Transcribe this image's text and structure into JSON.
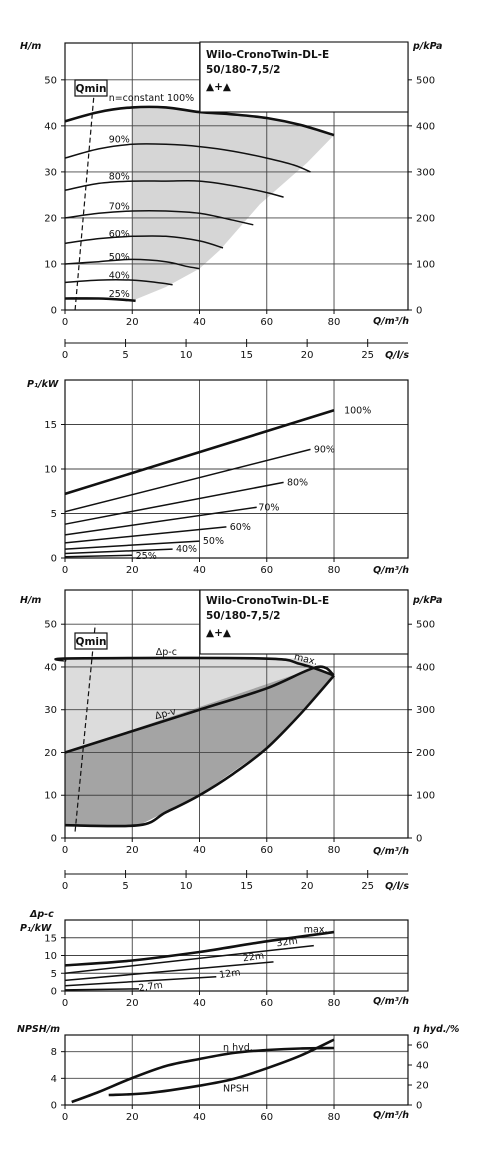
{
  "title": {
    "line1": "Wilo-CronoTwin-DL-E",
    "line2": "50/180-7,5/2",
    "line3": "▲+▲"
  },
  "chart_data": [
    {
      "id": "hq_speed",
      "type": "line",
      "xlabel": "Q/m³/h",
      "ylabel": "H/m",
      "y2label": "p/kPa",
      "xlim": [
        0,
        102
      ],
      "ylim": [
        0,
        58
      ],
      "xticks": [
        0,
        20,
        40,
        60,
        80
      ],
      "yticks": [
        0,
        10,
        20,
        30,
        40,
        50
      ],
      "y2ticks": [
        0,
        100,
        200,
        300,
        400,
        500
      ],
      "qmin_label": "Qmin",
      "qmin_line": [
        [
          3,
          0
        ],
        [
          9,
          50
        ]
      ],
      "shaded_region": [
        [
          20,
          2
        ],
        [
          30,
          5
        ],
        [
          40,
          9
        ],
        [
          46,
          13
        ],
        [
          58,
          23
        ],
        [
          72,
          32
        ],
        [
          80,
          38
        ],
        [
          76,
          40
        ],
        [
          60,
          42
        ],
        [
          40,
          42
        ],
        [
          20,
          44
        ],
        [
          12,
          44
        ],
        [
          20,
          43
        ],
        [
          40,
          42
        ],
        [
          60,
          41
        ],
        [
          70,
          40
        ],
        [
          80,
          38
        ]
      ],
      "series": [
        {
          "label": "n=constant 100%",
          "bold": true,
          "points": [
            [
              0,
              41
            ],
            [
              10,
              43
            ],
            [
              20,
              44
            ],
            [
              30,
              44
            ],
            [
              40,
              43
            ],
            [
              50,
              42.5
            ],
            [
              60,
              41.7
            ],
            [
              70,
              40.2
            ],
            [
              80,
              38
            ]
          ]
        },
        {
          "label": "90%",
          "points": [
            [
              0,
              33
            ],
            [
              10,
              35
            ],
            [
              20,
              36
            ],
            [
              30,
              36
            ],
            [
              40,
              35.5
            ],
            [
              50,
              34.5
            ],
            [
              60,
              33
            ],
            [
              68,
              31.5
            ],
            [
              73,
              30
            ]
          ]
        },
        {
          "label": "80%",
          "points": [
            [
              0,
              26
            ],
            [
              10,
              27.5
            ],
            [
              20,
              28
            ],
            [
              30,
              28
            ],
            [
              40,
              28
            ],
            [
              50,
              27
            ],
            [
              60,
              25.5
            ],
            [
              65,
              24.5
            ]
          ]
        },
        {
          "label": "70%",
          "points": [
            [
              0,
              20
            ],
            [
              10,
              21
            ],
            [
              20,
              21.5
            ],
            [
              30,
              21.5
            ],
            [
              40,
              21
            ],
            [
              50,
              19.5
            ],
            [
              56,
              18.5
            ]
          ]
        },
        {
          "label": "60%",
          "points": [
            [
              0,
              14.5
            ],
            [
              10,
              15.5
            ],
            [
              20,
              16
            ],
            [
              30,
              16
            ],
            [
              40,
              15
            ],
            [
              47,
              13.5
            ]
          ]
        },
        {
          "label": "50%",
          "points": [
            [
              0,
              10
            ],
            [
              10,
              10.5
            ],
            [
              20,
              11
            ],
            [
              30,
              10.5
            ],
            [
              36,
              9.5
            ],
            [
              40,
              9
            ]
          ]
        },
        {
          "label": "40%",
          "points": [
            [
              0,
              6
            ],
            [
              10,
              6.5
            ],
            [
              20,
              6.5
            ],
            [
              27,
              6
            ],
            [
              32,
              5.5
            ]
          ]
        },
        {
          "label": "25%",
          "bold": true,
          "points": [
            [
              0,
              2.5
            ],
            [
              10,
              2.5
            ],
            [
              18,
              2.2
            ],
            [
              21,
              2
            ]
          ]
        }
      ],
      "labels": [
        {
          "text": "n=constant 100%",
          "x": 13,
          "y": 46
        },
        {
          "text": "90%",
          "x": 13,
          "y": 37
        },
        {
          "text": "80%",
          "x": 13,
          "y": 29
        },
        {
          "text": "70%",
          "x": 13,
          "y": 22.5
        },
        {
          "text": "60%",
          "x": 13,
          "y": 16.5
        },
        {
          "text": "50%",
          "x": 13,
          "y": 11.5
        },
        {
          "text": "40%",
          "x": 13,
          "y": 7.5
        },
        {
          "text": "25%",
          "x": 13,
          "y": 3.5
        }
      ]
    },
    {
      "id": "q_ls_axis",
      "type": "axis",
      "xlabel": "Q/l/s",
      "xlim": [
        0,
        28.33
      ],
      "xticks": [
        0,
        5,
        10,
        15,
        20,
        25
      ]
    },
    {
      "id": "p1_speed",
      "type": "line",
      "xlabel": "Q/m³/h",
      "ylabel": "P₁/kW",
      "xlim": [
        0,
        102
      ],
      "ylim": [
        0,
        20
      ],
      "xticks": [
        0,
        20,
        40,
        60,
        80
      ],
      "yticks": [
        0,
        5,
        10,
        15
      ],
      "series": [
        {
          "label": "100%",
          "bold": true,
          "points": [
            [
              0,
              7.2
            ],
            [
              80,
              16.6
            ]
          ]
        },
        {
          "label": "90%",
          "points": [
            [
              0,
              5.2
            ],
            [
              73,
              12.2
            ]
          ]
        },
        {
          "label": "80%",
          "points": [
            [
              0,
              3.8
            ],
            [
              65,
              8.5
            ]
          ]
        },
        {
          "label": "70%",
          "points": [
            [
              0,
              2.6
            ],
            [
              57,
              5.7
            ]
          ]
        },
        {
          "label": "60%",
          "points": [
            [
              0,
              1.7
            ],
            [
              48,
              3.5
            ]
          ]
        },
        {
          "label": "50%",
          "points": [
            [
              0,
              1.0
            ],
            [
              40,
              1.9
            ]
          ]
        },
        {
          "label": "40%",
          "points": [
            [
              0,
              0.5
            ],
            [
              32,
              1.0
            ]
          ]
        },
        {
          "label": "25%",
          "points": [
            [
              0,
              0.15
            ],
            [
              20,
              0.3
            ]
          ]
        }
      ],
      "labels": [
        {
          "text": "100%",
          "x": 83,
          "y": 16.6
        },
        {
          "text": "90%",
          "x": 74,
          "y": 12.2
        },
        {
          "text": "80%",
          "x": 66,
          "y": 8.5
        },
        {
          "text": "70%",
          "x": 57.5,
          "y": 5.7
        },
        {
          "text": "60%",
          "x": 49,
          "y": 3.5
        },
        {
          "text": "50%",
          "x": 41,
          "y": 1.9
        },
        {
          "text": "40%",
          "x": 33,
          "y": 1.0
        },
        {
          "text": "25%",
          "x": 21,
          "y": 0.2
        }
      ]
    },
    {
      "id": "hq_control",
      "type": "area",
      "xlabel": "Q/m³/h",
      "ylabel": "H/m",
      "y2label": "p/kPa",
      "xlim": [
        0,
        102
      ],
      "ylim": [
        0,
        58
      ],
      "xticks": [
        0,
        20,
        40,
        60,
        80
      ],
      "yticks": [
        0,
        10,
        20,
        30,
        40,
        50
      ],
      "y2ticks": [
        0,
        100,
        200,
        300,
        400,
        500
      ],
      "qmin_label": "Qmin",
      "qmin_line": [
        [
          3,
          1.5
        ],
        [
          9,
          50
        ]
      ],
      "light_region": [
        [
          0,
          20
        ],
        [
          75,
          40
        ],
        [
          70,
          42
        ],
        [
          58,
          42
        ],
        [
          0,
          42
        ]
      ],
      "dark_region": [
        [
          0,
          3
        ],
        [
          22,
          3
        ],
        [
          40,
          10
        ],
        [
          60,
          21
        ],
        [
          80,
          38
        ],
        [
          75,
          40
        ],
        [
          0,
          20
        ]
      ],
      "series": [
        {
          "label": "Δp-c",
          "bold": true,
          "points": [
            [
              0,
              41.5
            ],
            [
              2,
              42
            ],
            [
              58,
              42
            ],
            [
              70,
              40.7
            ],
            [
              80,
              38
            ]
          ]
        },
        {
          "label": "Δp-v",
          "bold": true,
          "points": [
            [
              0,
              20
            ],
            [
              20,
              25
            ],
            [
              40,
              30
            ],
            [
              60,
              35
            ],
            [
              75,
              40
            ],
            [
              80,
              38
            ]
          ]
        },
        {
          "label": "max.",
          "bold": true,
          "points": [
            [
              0,
              3
            ],
            [
              22,
              3
            ],
            [
              30,
              6
            ],
            [
              40,
              10
            ],
            [
              50,
              15
            ],
            [
              60,
              21
            ],
            [
              70,
              29
            ],
            [
              80,
              38
            ]
          ]
        }
      ],
      "labels": [
        {
          "text": "Δp-c",
          "x": 27,
          "y": 43.5
        },
        {
          "text": "Δp-v",
          "x": 27,
          "y": 28.5
        },
        {
          "text": "max.",
          "x": 68,
          "y": 42.5
        }
      ]
    },
    {
      "id": "q_ls_axis_2",
      "type": "axis",
      "xlabel": "Q/l/s",
      "xlim": [
        0,
        28.33
      ],
      "xticks": [
        0,
        5,
        10,
        15,
        20,
        25
      ]
    },
    {
      "id": "p1_control",
      "type": "line",
      "xlabel": "Q/m³/h",
      "ylabel": "P₁/kW",
      "ylabel_top": "Δp-c",
      "xlim": [
        0,
        102
      ],
      "ylim": [
        0,
        20
      ],
      "xticks": [
        0,
        20,
        40,
        60,
        80
      ],
      "yticks": [
        0,
        5,
        10,
        15
      ],
      "series": [
        {
          "label": "max.",
          "bold": true,
          "points": [
            [
              0,
              7.2
            ],
            [
              20,
              8.6
            ],
            [
              40,
              11
            ],
            [
              60,
              14
            ],
            [
              80,
              16.6
            ]
          ]
        },
        {
          "label": "32m",
          "points": [
            [
              0,
              5
            ],
            [
              74,
              12.8
            ]
          ]
        },
        {
          "label": "22m",
          "points": [
            [
              0,
              3
            ],
            [
              62,
              8.2
            ]
          ]
        },
        {
          "label": "12m",
          "points": [
            [
              0,
              1.5
            ],
            [
              45,
              4
            ]
          ]
        },
        {
          "label": "2,7m",
          "points": [
            [
              0,
              0.3
            ],
            [
              22,
              0.6
            ]
          ]
        }
      ],
      "labels": [
        {
          "text": "max.",
          "x": 71,
          "y": 17.3
        },
        {
          "text": "32m",
          "x": 63,
          "y": 13.4
        },
        {
          "text": "22m",
          "x": 53,
          "y": 9.2
        },
        {
          "text": "12m",
          "x": 46,
          "y": 4.5
        },
        {
          "text": "2,7m",
          "x": 22,
          "y": 0.8
        }
      ]
    },
    {
      "id": "npsh_eff",
      "type": "line",
      "xlabel": "Q/m³/h",
      "ylabel": "NPSH/m",
      "y2label": "η hyd./%",
      "xlim": [
        0,
        102
      ],
      "ylim": [
        0,
        10.5
      ],
      "xticks": [
        0,
        20,
        40,
        60,
        80
      ],
      "yticks": [
        0,
        4,
        8
      ],
      "y2ticks": [
        0,
        20,
        40,
        60
      ],
      "y2lim": [
        0,
        70
      ],
      "series": [
        {
          "label": "η hyd.",
          "bold": true,
          "axis": "y2",
          "points": [
            [
              2,
              3
            ],
            [
              10,
              13
            ],
            [
              20,
              27
            ],
            [
              30,
              39
            ],
            [
              40,
              46
            ],
            [
              50,
              52
            ],
            [
              60,
              55
            ],
            [
              70,
              56.5
            ],
            [
              80,
              57
            ]
          ]
        },
        {
          "label": "NPSH",
          "bold": true,
          "axis": "y",
          "points": [
            [
              13,
              1.5
            ],
            [
              25,
              1.8
            ],
            [
              40,
              2.9
            ],
            [
              50,
              3.9
            ],
            [
              60,
              5.5
            ],
            [
              70,
              7.4
            ],
            [
              80,
              9.8
            ]
          ]
        }
      ],
      "labels": [
        {
          "text": "η hyd.",
          "x": 47,
          "y": 8.6
        },
        {
          "text": "NPSH",
          "x": 47,
          "y": 2.5
        }
      ]
    }
  ]
}
